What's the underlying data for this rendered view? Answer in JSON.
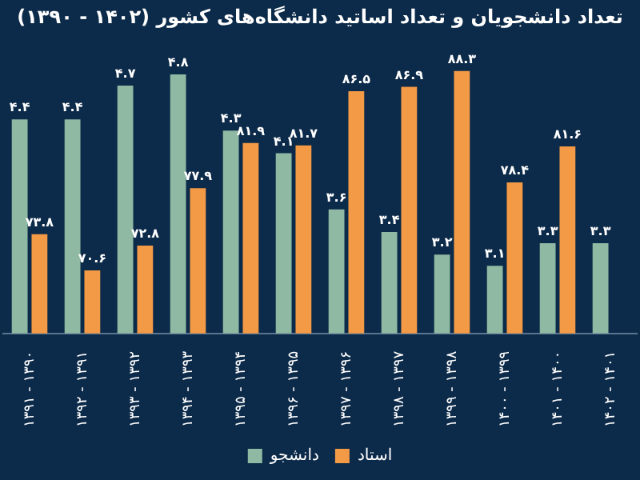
{
  "chart_data": {
    "type": "bar",
    "title": "تعداد دانشجویان و تعداد اساتید دانشگاه‌های کشور (۱۴۰۲ - ۱۳۹۰)",
    "categories": [
      "۱۳۹۱ - ۱۳۹۰",
      "۱۳۹۲ - ۱۳۹۱",
      "۱۳۹۳ - ۱۳۹۲",
      "۱۳۹۴ - ۱۳۹۳",
      "۱۳۹۵ - ۱۳۹۴",
      "۱۳۹۶ - ۱۳۹۵",
      "۱۳۹۷ - ۱۳۹۶",
      "۱۳۹۸ - ۱۳۹۷",
      "۱۳۹۹ - ۱۳۹۸",
      "۱۴۰۰ - ۱۳۹۹",
      "۱۴۰۱ - ۱۴۰۰",
      "۱۴۰۲ - ۱۴۰۱"
    ],
    "series": [
      {
        "name": "دانشجو",
        "color": "#8fb9a2",
        "values": [
          4.4,
          4.4,
          4.7,
          4.8,
          4.3,
          4.1,
          3.6,
          3.4,
          3.2,
          3.1,
          3.3,
          3.3
        ],
        "value_labels": [
          "۴.۴",
          "۴.۴",
          "۴.۷",
          "۴.۸",
          "۴.۳",
          "۴.۱",
          "۳.۶",
          "۳.۴",
          "۳.۲",
          "۳.۱",
          "۳.۳",
          "۳.۳"
        ]
      },
      {
        "name": "استاد",
        "color": "#f29a45",
        "axis": "y2",
        "values": [
          73.8,
          70.6,
          72.8,
          77.9,
          81.9,
          81.7,
          86.5,
          86.9,
          88.3,
          78.4,
          81.6,
          null
        ],
        "value_labels": [
          "۷۳.۸",
          "۷۰.۶",
          "۷۲.۸",
          "۷۷.۹",
          "۸۱.۹",
          "۸۱.۷",
          "۸۶.۵",
          "۸۶.۹",
          "۸۸.۳",
          "۷۸.۴",
          "۸۱.۶",
          null
        ]
      }
    ],
    "tick_labels": "x",
    "legend": "bottom"
  }
}
